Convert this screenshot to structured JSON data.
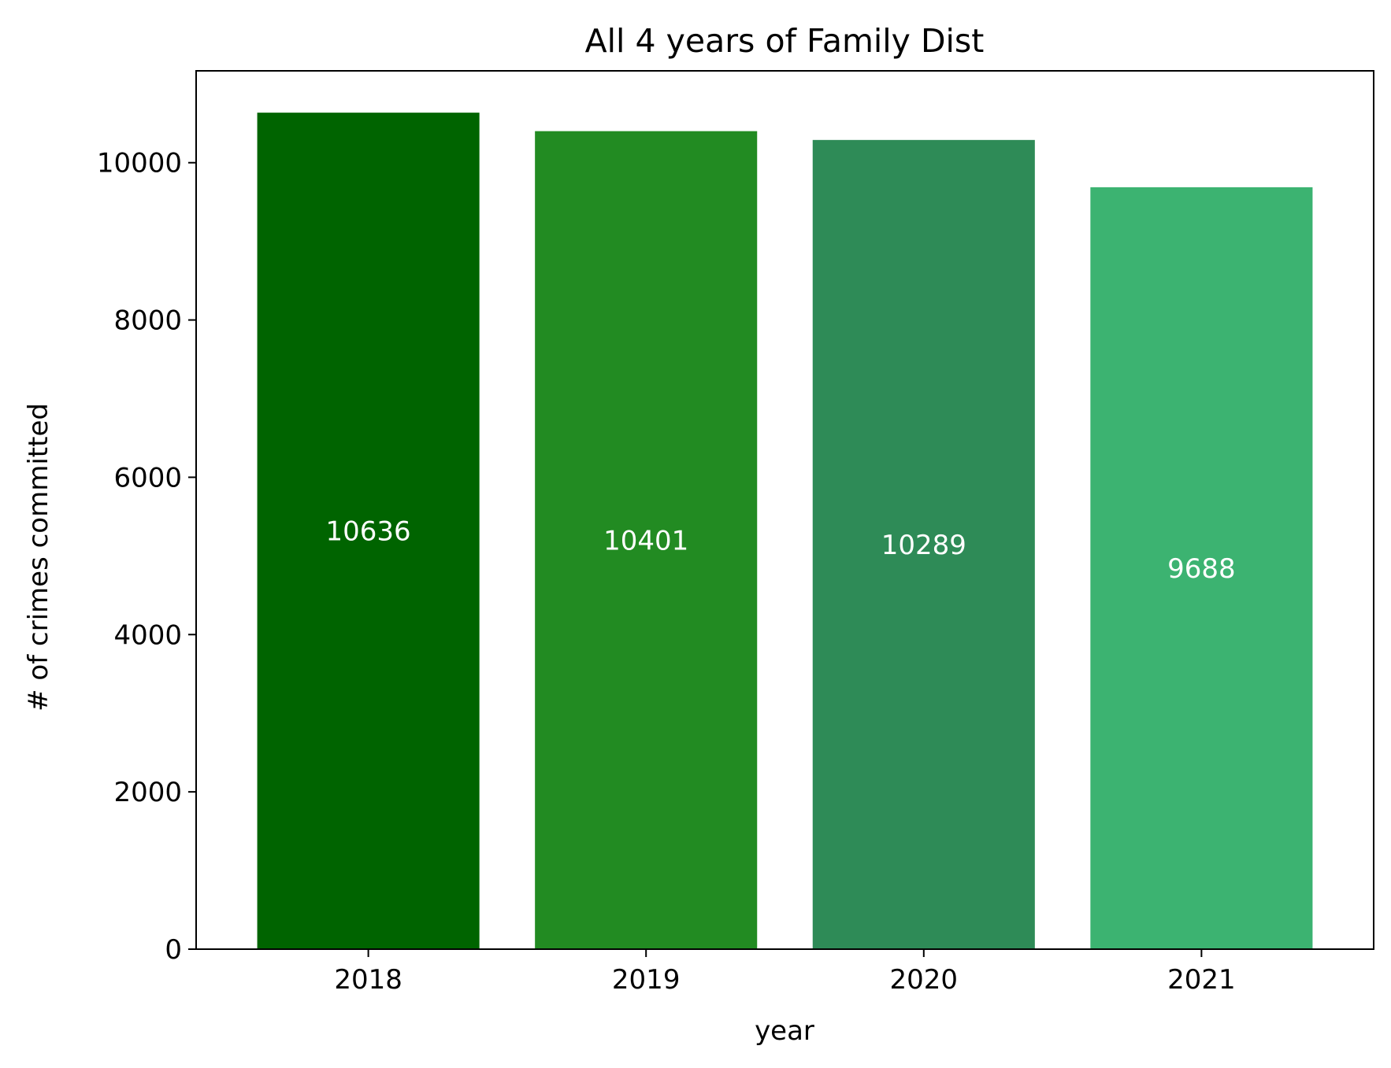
{
  "chart_data": {
    "type": "bar",
    "title": "All 4 years of Family Dist",
    "xlabel": "year",
    "ylabel": "# of crimes committed",
    "categories": [
      "2018",
      "2019",
      "2020",
      "2021"
    ],
    "values": [
      10636,
      10401,
      10289,
      9688
    ],
    "data_labels": [
      "10636",
      "10401",
      "10289",
      "9688"
    ],
    "colors": [
      "#006400",
      "#228b22",
      "#2e8b57",
      "#3cb371"
    ],
    "ylim": [
      0,
      11168
    ],
    "yticks": [
      0,
      2000,
      4000,
      6000,
      8000,
      10000
    ],
    "ytick_labels": [
      "0",
      "2000",
      "4000",
      "6000",
      "8000",
      "10000"
    ],
    "grid": false,
    "legend": "none"
  }
}
